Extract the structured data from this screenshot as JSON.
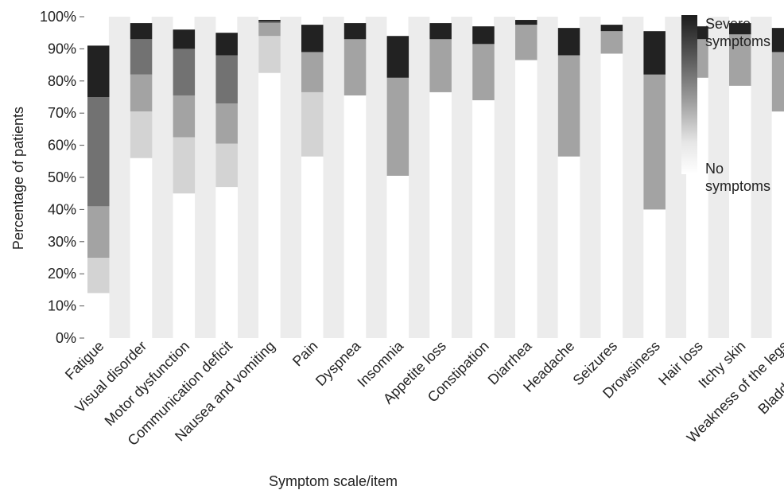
{
  "chart_data": {
    "type": "bar",
    "stacked": true,
    "title": "",
    "xlabel": "Symptom scale/item",
    "ylabel": "Percentage of patients",
    "ylim": [
      0,
      100
    ],
    "yticks": [
      "0%",
      "10%",
      "20%",
      "30%",
      "40%",
      "50%",
      "60%",
      "70%",
      "80%",
      "90%",
      "100%"
    ],
    "grid": false,
    "legend_position": "right",
    "legend": {
      "top": "Severe\nsymptoms",
      "bottom": "No\nsymptoms"
    },
    "colors": [
      "#ffffff",
      "#d3d3d3",
      "#a3a3a3",
      "#727272",
      "#222222"
    ],
    "categories": [
      "Fatigue",
      "Visual disorder",
      "Motor dysfunction",
      "Communication deficit",
      "Nausea and vomiting",
      "Pain",
      "Dyspnea",
      "Insomnia",
      "Appetite loss",
      "Constipation",
      "Diarrhea",
      "Headache",
      "Seizures",
      "Drowsiness",
      "Hair loss",
      "Itchy skin",
      "Weakness of the legs",
      "Bladder control"
    ],
    "bounds": [
      [
        14,
        25,
        41,
        75,
        91,
        95
      ],
      [
        56,
        70.5,
        82,
        93,
        98,
        98.8
      ],
      [
        45,
        62.5,
        75.5,
        90,
        96,
        98
      ],
      [
        47,
        60.5,
        73,
        88,
        95,
        96.5
      ],
      [
        82.5,
        94,
        98,
        98.5,
        99,
        99.3
      ],
      [
        56.5,
        76.5,
        89,
        89,
        97.5,
        97.5
      ],
      [
        75.5,
        75.5,
        93,
        93,
        98,
        98.5
      ],
      [
        50.5,
        50.5,
        81,
        81,
        94,
        94
      ],
      [
        76.5,
        76.5,
        93,
        93,
        98,
        98
      ],
      [
        74,
        74,
        91.5,
        91.5,
        97,
        97
      ],
      [
        86.5,
        86.5,
        97.5,
        97.5,
        99,
        99.2
      ],
      [
        56.5,
        56.5,
        88,
        88,
        96.5,
        96.5
      ],
      [
        88.5,
        88.5,
        95.5,
        95.5,
        97.5,
        97.5
      ],
      [
        40,
        40,
        82,
        82,
        95.5,
        95.5
      ],
      [
        81,
        81,
        93,
        93,
        97,
        97.2
      ],
      [
        78.5,
        78.5,
        94.5,
        94.5,
        98,
        98.3
      ],
      [
        70.5,
        70.5,
        89,
        89,
        96.5,
        96.5
      ],
      [
        83.5,
        83.5,
        94.5,
        94.5,
        98,
        98
      ]
    ]
  }
}
